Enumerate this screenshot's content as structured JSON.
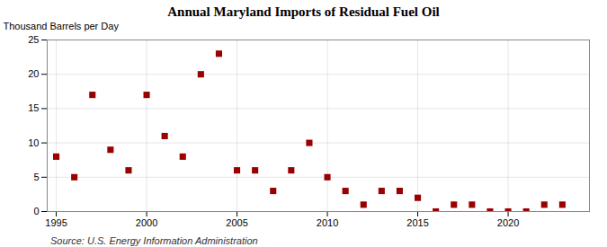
{
  "chart_data": {
    "type": "scatter",
    "title": "Annual Maryland Imports of Residual Fuel Oil",
    "ylabel": "Thousand Barrels per Day",
    "source": "Source: U.S. Energy Information Administration",
    "x": [
      1995,
      1996,
      1997,
      1998,
      1999,
      2000,
      2001,
      2002,
      2003,
      2004,
      2005,
      2006,
      2007,
      2008,
      2009,
      2010,
      2011,
      2012,
      2013,
      2014,
      2015,
      2016,
      2017,
      2018,
      2019,
      2020,
      2021,
      2022,
      2023
    ],
    "values": [
      8,
      5,
      17,
      9,
      6,
      17,
      11,
      8,
      20,
      23,
      6,
      6,
      3,
      6,
      10,
      5,
      3,
      1,
      3,
      3,
      2,
      0,
      1,
      1,
      0,
      0,
      0,
      1,
      1
    ],
    "xlim": [
      1994.5,
      2024.5
    ],
    "xticks": [
      1995,
      2000,
      2005,
      2010,
      2015,
      2020
    ],
    "ylim": [
      0,
      25
    ],
    "yticks": [
      0,
      5,
      10,
      15,
      20,
      25
    ],
    "color": "#990000",
    "marker": "square",
    "grid": true
  }
}
